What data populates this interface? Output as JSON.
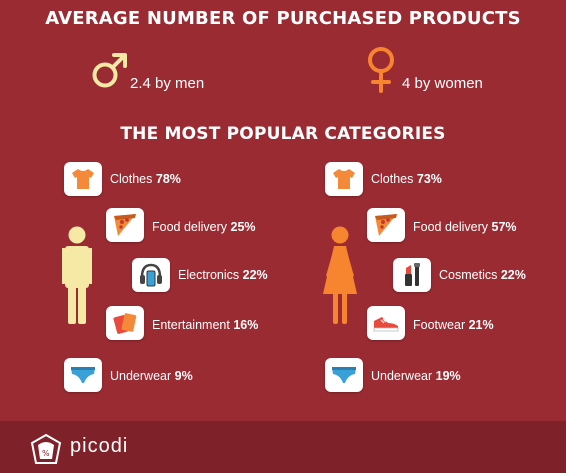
{
  "titles": {
    "main": "AVERAGE NUMBER OF PURCHASED PRODUCTS",
    "categories": "THE MOST POPULAR CATEGORIES"
  },
  "averages": {
    "men": {
      "text": "2.4 by men",
      "value": 2.4,
      "icon": "male-symbol-icon"
    },
    "women": {
      "text": "4 by women",
      "value": 4,
      "icon": "female-symbol-icon"
    }
  },
  "brand": "picodi",
  "colors": {
    "background": "#9a2b32",
    "footer": "#7f2128",
    "men_accent": "#f5e9a5",
    "women_accent": "#f7842f"
  },
  "chart_data": [
    {
      "type": "table",
      "title": "",
      "group": "men",
      "unit": "%",
      "categories": [
        "Clothes",
        "Food delivery",
        "Electronics",
        "Entertainment",
        "Underwear"
      ],
      "values": [
        78,
        25,
        22,
        16,
        9
      ],
      "labels": [
        "78%",
        "25%",
        "22%",
        "16%",
        "9%"
      ],
      "icons": [
        "tshirt-icon",
        "pizza-icon",
        "headphones-phone-icon",
        "tickets-icon",
        "underwear-icon"
      ]
    },
    {
      "type": "table",
      "title": "",
      "group": "women",
      "unit": "%",
      "categories": [
        "Clothes",
        "Food delivery",
        "Cosmetics",
        "Footwear",
        "Underwear"
      ],
      "values": [
        73,
        57,
        22,
        21,
        19
      ],
      "labels": [
        "73%",
        "57%",
        "22%",
        "21%",
        "19%"
      ],
      "icons": [
        "tshirt-icon",
        "pizza-icon",
        "lipstick-mascara-icon",
        "sneaker-icon",
        "underwear-icon"
      ]
    }
  ]
}
